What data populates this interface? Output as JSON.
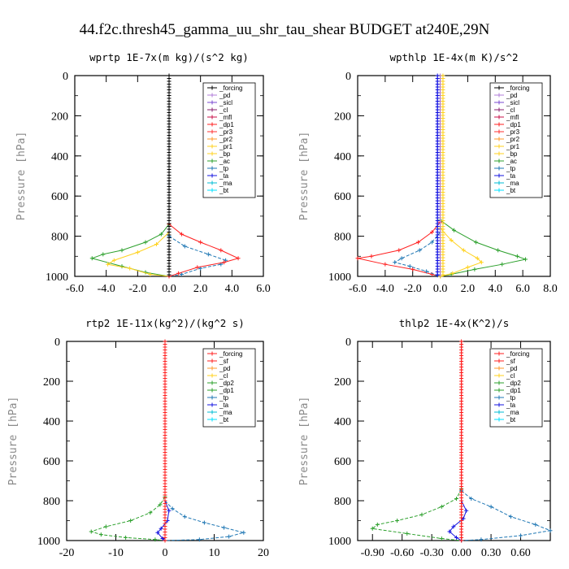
{
  "title": "44.f2c.thresh45_gamma_uu_shr_tau_shear  BUDGET at240E,29N",
  "colors": {
    "forcing": "#000000",
    "pd": "#b07cd8",
    "sicl": "#7a4ad0",
    "cl": "#8a1f6e",
    "mfl": "#c8104a",
    "dp1": "#ff2020",
    "pr3": "#ff3030",
    "pr2": "#ff9a2a",
    "pr1": "#ffd21f",
    "bp": "#ffd21f",
    "ac": "#2ca02c",
    "tp": "#1f77b4",
    "ta": "#1414e0",
    "ma": "#00bcd4",
    "bt": "#00e0ff"
  },
  "chart_data": [
    {
      "type": "line",
      "title": "wprtp   1E-7x(m kg)/(s^2 kg)",
      "ylabel": "Pressure [hPa]",
      "xlim": [
        -6,
        6
      ],
      "ylim": [
        1000,
        0
      ],
      "xticks": [
        -6,
        -4,
        -2,
        0,
        2,
        4,
        6
      ],
      "xticklabels": [
        "-6.0",
        "-4.0",
        "-2.0",
        "0.0",
        "2.0",
        "4.0",
        "6.0"
      ],
      "yticks": [
        0,
        200,
        400,
        600,
        800,
        1000
      ],
      "legend": [
        "_forcing",
        "_pd",
        "_sicl",
        "_cl",
        "_mfl",
        "_dp1",
        "_pr3",
        "_pr2",
        "_pr1",
        "_bp",
        "_ac",
        "_tp",
        "_ta",
        "_ma",
        "_bt"
      ],
      "legend_colors": [
        "forcing",
        "pd",
        "sicl",
        "cl",
        "mfl",
        "dp1",
        "pr3",
        "pr2",
        "pr1",
        "bp",
        "ac",
        "tp",
        "ta",
        "ma",
        "bt"
      ],
      "legend_position": "top-right",
      "series": [
        {
          "name": "_ac",
          "color": "ac",
          "points": [
            [
              0,
              740
            ],
            [
              -0.5,
              790
            ],
            [
              -1.5,
              830
            ],
            [
              -3,
              870
            ],
            [
              -4.2,
              890
            ],
            [
              -4.9,
              910
            ],
            [
              -3,
              950
            ],
            [
              -1.5,
              980
            ],
            [
              0,
              1000
            ]
          ]
        },
        {
          "name": "_pr1",
          "color": "pr1",
          "points": [
            [
              0,
              780
            ],
            [
              -0.8,
              840
            ],
            [
              -2,
              880
            ],
            [
              -3.5,
              920
            ],
            [
              -3.9,
              940
            ],
            [
              -2.5,
              960
            ],
            [
              -1.2,
              990
            ],
            [
              0,
              1000
            ]
          ]
        },
        {
          "name": "_tp",
          "color": "tp",
          "points": [
            [
              0,
              800
            ],
            [
              1,
              850
            ],
            [
              2.5,
              890
            ],
            [
              3.6,
              920
            ],
            [
              3.3,
              940
            ],
            [
              2,
              960
            ],
            [
              0.8,
              990
            ],
            [
              0,
              1000
            ]
          ]
        },
        {
          "name": "_dp1",
          "color": "dp1",
          "points": [
            [
              0,
              740
            ],
            [
              0.8,
              790
            ],
            [
              2,
              830
            ],
            [
              3.3,
              870
            ],
            [
              4.4,
              910
            ],
            [
              3.5,
              930
            ],
            [
              1.8,
              955
            ],
            [
              0.6,
              985
            ],
            [
              0,
              1000
            ]
          ]
        },
        {
          "name": "_forcing",
          "color": "forcing",
          "points": [
            [
              0,
              0
            ],
            [
              0,
              1000
            ]
          ]
        }
      ]
    },
    {
      "type": "line",
      "title": "wpthlp   1E-4x(m K)/s^2",
      "ylabel": "Pressure [hPa]",
      "xlim": [
        -6,
        8
      ],
      "ylim": [
        1000,
        0
      ],
      "xticks": [
        -6,
        -4,
        -2,
        0,
        2,
        4,
        6,
        8
      ],
      "xticklabels": [
        "-6.0",
        "-4.0",
        "-2.0",
        "0.0",
        "2.0",
        "4.0",
        "6.0",
        "8.0"
      ],
      "yticks": [
        0,
        200,
        400,
        600,
        800,
        1000
      ],
      "legend": [
        "_forcing",
        "_pd",
        "_sicl",
        "_cl",
        "_mfl",
        "_dp1",
        "_pr3",
        "_pr2",
        "_pr1",
        "_bp",
        "_ac",
        "_tp",
        "_ta",
        "_ma",
        "_bt"
      ],
      "legend_colors": [
        "forcing",
        "pd",
        "sicl",
        "cl",
        "mfl",
        "dp1",
        "pr3",
        "pr2",
        "pr1",
        "bp",
        "ac",
        "tp",
        "ta",
        "ma",
        "bt"
      ],
      "legend_position": "top-right",
      "series": [
        {
          "name": "_dp1",
          "color": "dp1",
          "points": [
            [
              0,
              730
            ],
            [
              -0.6,
              780
            ],
            [
              -1.6,
              830
            ],
            [
              -3,
              870
            ],
            [
              -5,
              900
            ],
            [
              -6,
              910
            ],
            [
              -4,
              940
            ],
            [
              -2,
              965
            ],
            [
              -0.6,
              990
            ],
            [
              0,
              1000
            ]
          ]
        },
        {
          "name": "_tp",
          "color": "tp",
          "points": [
            [
              0,
              780
            ],
            [
              -0.6,
              830
            ],
            [
              -1.5,
              870
            ],
            [
              -2.8,
              910
            ],
            [
              -3.3,
              930
            ],
            [
              -2.2,
              950
            ],
            [
              -1,
              975
            ],
            [
              -0.2,
              995
            ],
            [
              0,
              1000
            ]
          ]
        },
        {
          "name": "_ac",
          "color": "ac",
          "points": [
            [
              0,
              720
            ],
            [
              1,
              770
            ],
            [
              2.6,
              830
            ],
            [
              4.2,
              870
            ],
            [
              5.6,
              900
            ],
            [
              6.2,
              915
            ],
            [
              4.5,
              940
            ],
            [
              2.5,
              965
            ],
            [
              0.8,
              990
            ],
            [
              0,
              1000
            ]
          ]
        },
        {
          "name": "_pr1",
          "color": "pr1",
          "points": [
            [
              0,
              760
            ],
            [
              0.8,
              820
            ],
            [
              1.7,
              870
            ],
            [
              2.7,
              910
            ],
            [
              3,
              930
            ],
            [
              2,
              955
            ],
            [
              0.9,
              985
            ],
            [
              0,
              1000
            ]
          ]
        },
        {
          "name": "_pd",
          "color": "pd",
          "points": [
            [
              0,
              0
            ],
            [
              0,
              1000
            ]
          ]
        },
        {
          "name": "_ta",
          "color": "ta",
          "points": [
            [
              -0.2,
              0
            ],
            [
              -0.2,
              1000
            ]
          ]
        },
        {
          "name": "_bp",
          "color": "bp",
          "points": [
            [
              0.2,
              0
            ],
            [
              0.2,
              1000
            ]
          ]
        }
      ]
    },
    {
      "type": "line",
      "title": "rtp2   1E-11x(kg^2)/(kg^2 s)",
      "ylabel": "Pressure [hPa]",
      "xlim": [
        -20,
        20
      ],
      "ylim": [
        1000,
        0
      ],
      "xticks": [
        -20,
        -10,
        0,
        10,
        20
      ],
      "xticklabels": [
        "-20",
        "-10",
        "0",
        "10",
        "20"
      ],
      "yticks": [
        0,
        200,
        400,
        600,
        800,
        1000
      ],
      "legend": [
        "_forcing",
        "_sf",
        "_pd",
        "_cl",
        "_dp2",
        "_dp1",
        "_tp",
        "_ta",
        "_ma",
        "_bt"
      ],
      "legend_colors": [
        "forcing",
        "dp1",
        "pr2",
        "pr1",
        "ac",
        "ac",
        "tp",
        "ta",
        "ma",
        "bt"
      ],
      "legend_colors_override": {
        "forcing": "#ff2020"
      },
      "legend_position": "top-right",
      "series": [
        {
          "name": "_dp1",
          "color": "ac",
          "points": [
            [
              0,
              780
            ],
            [
              -1,
              820
            ],
            [
              -3,
              860
            ],
            [
              -7,
              900
            ],
            [
              -12,
              930
            ],
            [
              -15,
              955
            ],
            [
              -13,
              970
            ],
            [
              -8,
              985
            ],
            [
              -2,
              995
            ],
            [
              0,
              1000
            ]
          ]
        },
        {
          "name": "_tp",
          "color": "tp",
          "points": [
            [
              0,
              800
            ],
            [
              1.5,
              840
            ],
            [
              4,
              880
            ],
            [
              8,
              910
            ],
            [
              12,
              935
            ],
            [
              16,
              960
            ],
            [
              13,
              980
            ],
            [
              7,
              995
            ],
            [
              0,
              1000
            ]
          ]
        },
        {
          "name": "_ta",
          "color": "ta",
          "points": [
            [
              0,
              800
            ],
            [
              0.8,
              850
            ],
            [
              0.5,
              900
            ],
            [
              -0.8,
              940
            ],
            [
              -1.5,
              960
            ],
            [
              -0.5,
              990
            ],
            [
              0,
              1000
            ]
          ]
        },
        {
          "name": "_forcing",
          "color": "forcing_red",
          "points": [
            [
              0,
              0
            ],
            [
              0,
              1000
            ]
          ]
        }
      ]
    },
    {
      "type": "line",
      "title": "thlp2   1E-4x(K^2)/s",
      "ylabel": "Pressure [hPa]",
      "xlim": [
        -1.05,
        0.9
      ],
      "ylim": [
        1000,
        0
      ],
      "xticks": [
        -0.9,
        -0.6,
        -0.3,
        0,
        0.3,
        0.6
      ],
      "xticklabels": [
        "-0.90",
        "-0.60",
        "-0.30",
        "0.00",
        "0.30",
        "0.60"
      ],
      "yticks": [
        0,
        200,
        400,
        600,
        800,
        1000
      ],
      "legend": [
        "_forcing",
        "_sf",
        "_pd",
        "_cl",
        "_dp2",
        "_dp1",
        "_tp",
        "_ta",
        "_ma",
        "_bt"
      ],
      "legend_colors": [
        "forcing",
        "dp1",
        "pr2",
        "pr1",
        "ac",
        "ac",
        "tp",
        "ta",
        "ma",
        "bt"
      ],
      "legend_colors_override": {
        "forcing": "#ff2020"
      },
      "legend_position": "top-right",
      "series": [
        {
          "name": "_dp1",
          "color": "ac",
          "points": [
            [
              0,
              740
            ],
            [
              -0.05,
              790
            ],
            [
              -0.2,
              830
            ],
            [
              -0.4,
              870
            ],
            [
              -0.65,
              900
            ],
            [
              -0.85,
              920
            ],
            [
              -0.9,
              940
            ],
            [
              -0.55,
              965
            ],
            [
              -0.2,
              990
            ],
            [
              0,
              1000
            ]
          ]
        },
        {
          "name": "_tp",
          "color": "tp",
          "points": [
            [
              0,
              750
            ],
            [
              0.1,
              790
            ],
            [
              0.3,
              830
            ],
            [
              0.5,
              880
            ],
            [
              0.75,
              920
            ],
            [
              0.9,
              950
            ],
            [
              0.6,
              975
            ],
            [
              0.2,
              995
            ],
            [
              0,
              1000
            ]
          ]
        },
        {
          "name": "_ta",
          "color": "ta",
          "points": [
            [
              0,
              800
            ],
            [
              0.05,
              850
            ],
            [
              0.02,
              890
            ],
            [
              -0.08,
              930
            ],
            [
              -0.12,
              955
            ],
            [
              -0.05,
              985
            ],
            [
              0,
              1000
            ]
          ]
        },
        {
          "name": "_forcing",
          "color": "forcing_red",
          "points": [
            [
              0,
              0
            ],
            [
              0,
              1000
            ]
          ]
        }
      ]
    }
  ]
}
